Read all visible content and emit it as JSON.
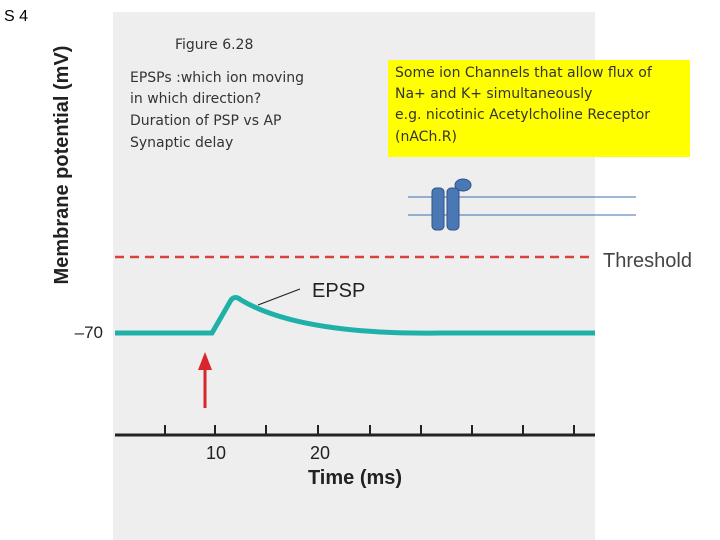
{
  "slide": {
    "label": "S 4"
  },
  "figure": {
    "title": "Figure 6.28",
    "y_axis_label": "Membrane potential (mV)",
    "y_tick": "–70",
    "x_axis_label": "Time (ms)",
    "x_ticks": [
      "10",
      "20"
    ],
    "threshold_label": "Threshold",
    "trace_label": "EPSP"
  },
  "notes": [
    "EPSPs :which ion moving",
    "in which direction?",
    "Duration of PSP vs AP",
    "Synaptic delay"
  ],
  "callout": [
    "Some ion Channels that allow flux of",
    "Na+ and K+ simultaneously",
    "e.g. nicotinic Acetylcholine Receptor",
    "(nACh.R)"
  ]
}
